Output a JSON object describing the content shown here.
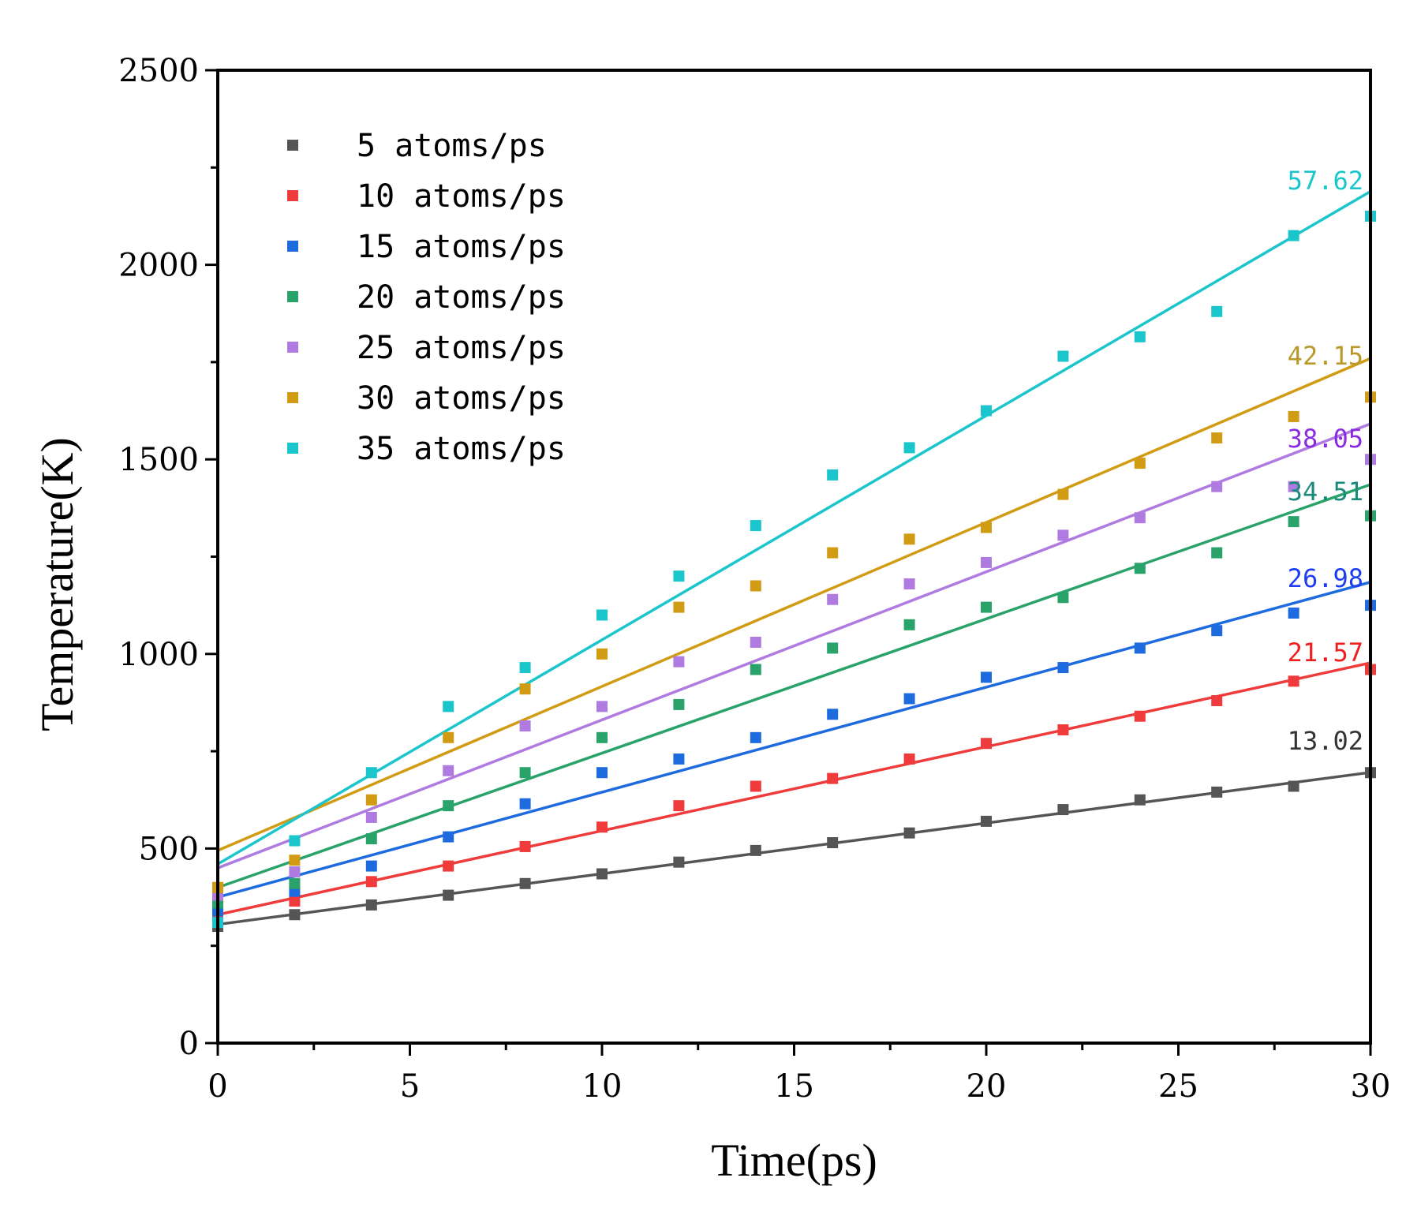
{
  "chart_data": {
    "type": "scatter",
    "title": "",
    "xlabel": "Time(ps)",
    "ylabel": "Temperature(K)",
    "xlim": [
      0,
      30
    ],
    "ylim": [
      0,
      2500
    ],
    "xticks": [
      0,
      5,
      10,
      15,
      20,
      25,
      30
    ],
    "yticks": [
      0,
      500,
      1000,
      1500,
      2000,
      2500
    ],
    "x": [
      0,
      2,
      4,
      6,
      8,
      10,
      12,
      14,
      16,
      18,
      20,
      22,
      24,
      26,
      28,
      30
    ],
    "legend_position": "top-left",
    "series": [
      {
        "name": "5 atoms/ps",
        "color": "#555555",
        "values": [
          300,
          330,
          355,
          380,
          410,
          435,
          465,
          495,
          515,
          540,
          570,
          600,
          625,
          645,
          660,
          695
        ],
        "fit": {
          "intercept": 305,
          "slope": 13.02
        },
        "slope_label": "13.02"
      },
      {
        "name": "10 atoms/ps",
        "color": "#ef3b3b",
        "values": [
          320,
          365,
          415,
          455,
          505,
          555,
          610,
          660,
          680,
          730,
          770,
          805,
          840,
          880,
          930,
          960
        ],
        "fit": {
          "intercept": 330,
          "slope": 21.57
        },
        "slope_label": "21.57"
      },
      {
        "name": "15 atoms/ps",
        "color": "#1e6be0",
        "values": [
          340,
          390,
          455,
          530,
          615,
          695,
          730,
          785,
          845,
          885,
          940,
          965,
          1015,
          1060,
          1105,
          1125
        ],
        "fit": {
          "intercept": 375,
          "slope": 26.98
        },
        "slope_label": "26.98"
      },
      {
        "name": "20 atoms/ps",
        "color": "#2aa36b",
        "values": [
          360,
          410,
          525,
          610,
          695,
          785,
          870,
          960,
          1015,
          1075,
          1120,
          1145,
          1220,
          1260,
          1340,
          1355
        ],
        "fit": {
          "intercept": 400,
          "slope": 34.51
        },
        "slope_label": "34.51"
      },
      {
        "name": "25 atoms/ps",
        "color": "#b07be0",
        "values": [
          380,
          440,
          580,
          700,
          815,
          865,
          980,
          1030,
          1140,
          1180,
          1235,
          1305,
          1350,
          1430,
          1430,
          1500
        ],
        "fit": {
          "intercept": 450,
          "slope": 38.05
        },
        "slope_label": "38.05"
      },
      {
        "name": "30 atoms/ps",
        "color": "#d19b14",
        "values": [
          400,
          470,
          625,
          785,
          910,
          1000,
          1120,
          1175,
          1260,
          1295,
          1325,
          1410,
          1490,
          1555,
          1610,
          1660
        ],
        "fit": {
          "intercept": 495,
          "slope": 42.15
        },
        "slope_label": "42.15"
      },
      {
        "name": "35 atoms/ps",
        "color": "#1ac6cc",
        "values": [
          310,
          520,
          695,
          865,
          965,
          1100,
          1200,
          1330,
          1460,
          1530,
          1625,
          1765,
          1815,
          1880,
          2075,
          2125
        ],
        "fit": {
          "intercept": 460,
          "slope": 57.62
        },
        "slope_label": "57.62"
      }
    ]
  },
  "slope_label_colors": {
    "13.02": "#333333",
    "21.57": "#ef1f1f",
    "26.98": "#1f3df0",
    "34.51": "#1a8a7a",
    "38.05": "#8a2be2",
    "42.15": "#b89a2a",
    "57.62": "#1ac6cc"
  }
}
